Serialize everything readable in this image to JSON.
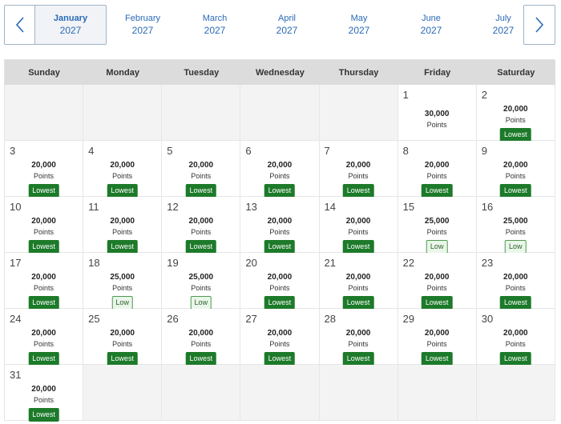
{
  "nav": {
    "prev_icon": "chevron-left-icon",
    "next_icon": "chevron-right-icon",
    "months": [
      {
        "name": "January",
        "year": "2027",
        "active": true
      },
      {
        "name": "February",
        "year": "2027",
        "active": false
      },
      {
        "name": "March",
        "year": "2027",
        "active": false
      },
      {
        "name": "April",
        "year": "2027",
        "active": false
      },
      {
        "name": "May",
        "year": "2027",
        "active": false
      },
      {
        "name": "June",
        "year": "2027",
        "active": false
      },
      {
        "name": "July",
        "year": "2027",
        "active": false
      }
    ]
  },
  "colors": {
    "accent": "#2a6ab6",
    "lowest_badge": "#1d7a2a",
    "low_badge_bg": "#eaf6ea"
  },
  "calendar": {
    "weekdays": [
      "Sunday",
      "Monday",
      "Tuesday",
      "Wednesday",
      "Thursday",
      "Friday",
      "Saturday"
    ],
    "leading_blank_days": 5,
    "trailing_blank_days": 6,
    "unit_label": "Points",
    "days": [
      {
        "day": "1",
        "points": "30,000",
        "badge": ""
      },
      {
        "day": "2",
        "points": "20,000",
        "badge": "Lowest"
      },
      {
        "day": "3",
        "points": "20,000",
        "badge": "Lowest"
      },
      {
        "day": "4",
        "points": "20,000",
        "badge": "Lowest"
      },
      {
        "day": "5",
        "points": "20,000",
        "badge": "Lowest"
      },
      {
        "day": "6",
        "points": "20,000",
        "badge": "Lowest"
      },
      {
        "day": "7",
        "points": "20,000",
        "badge": "Lowest"
      },
      {
        "day": "8",
        "points": "20,000",
        "badge": "Lowest"
      },
      {
        "day": "9",
        "points": "20,000",
        "badge": "Lowest"
      },
      {
        "day": "10",
        "points": "20,000",
        "badge": "Lowest"
      },
      {
        "day": "11",
        "points": "20,000",
        "badge": "Lowest"
      },
      {
        "day": "12",
        "points": "20,000",
        "badge": "Lowest"
      },
      {
        "day": "13",
        "points": "20,000",
        "badge": "Lowest"
      },
      {
        "day": "14",
        "points": "20,000",
        "badge": "Lowest"
      },
      {
        "day": "15",
        "points": "25,000",
        "badge": "Low"
      },
      {
        "day": "16",
        "points": "25,000",
        "badge": "Low"
      },
      {
        "day": "17",
        "points": "20,000",
        "badge": "Lowest"
      },
      {
        "day": "18",
        "points": "25,000",
        "badge": "Low"
      },
      {
        "day": "19",
        "points": "25,000",
        "badge": "Low"
      },
      {
        "day": "20",
        "points": "20,000",
        "badge": "Lowest"
      },
      {
        "day": "21",
        "points": "20,000",
        "badge": "Lowest"
      },
      {
        "day": "22",
        "points": "20,000",
        "badge": "Lowest"
      },
      {
        "day": "23",
        "points": "20,000",
        "badge": "Lowest"
      },
      {
        "day": "24",
        "points": "20,000",
        "badge": "Lowest"
      },
      {
        "day": "25",
        "points": "20,000",
        "badge": "Lowest"
      },
      {
        "day": "26",
        "points": "20,000",
        "badge": "Lowest"
      },
      {
        "day": "27",
        "points": "20,000",
        "badge": "Lowest"
      },
      {
        "day": "28",
        "points": "20,000",
        "badge": "Lowest"
      },
      {
        "day": "29",
        "points": "20,000",
        "badge": "Lowest"
      },
      {
        "day": "30",
        "points": "20,000",
        "badge": "Lowest"
      },
      {
        "day": "31",
        "points": "20,000",
        "badge": "Lowest"
      }
    ]
  }
}
